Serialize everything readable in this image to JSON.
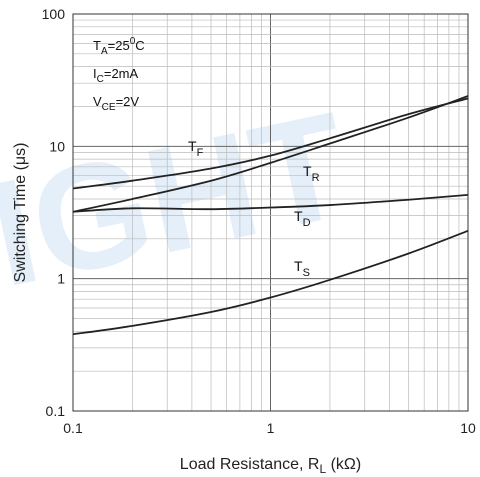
{
  "chart_data": {
    "type": "line",
    "title": "",
    "xlabel": "Load Resistance, R",
    "xlabel_sub": "L",
    "xlabel_unit": " (kΩ)",
    "ylabel": "Switching Time (μs)",
    "x_scale": "log",
    "y_scale": "log",
    "xlim": [
      0.1,
      10
    ],
    "ylim": [
      0.1,
      100
    ],
    "x_ticks": [
      "0.1",
      "1",
      "10"
    ],
    "y_ticks": [
      "100",
      "10",
      "1",
      "0.1"
    ],
    "grid": true,
    "watermark": "IGHT",
    "conditions": [
      {
        "main": "T",
        "sub": "A",
        "rest": "=25",
        "sup": "0",
        "tail": "C"
      },
      {
        "main": "I",
        "sub": "C",
        "rest": "=2mA",
        "sup": "",
        "tail": ""
      },
      {
        "main": "V",
        "sub": "CE",
        "rest": "=2V",
        "sup": "",
        "tail": ""
      }
    ],
    "series": [
      {
        "name": "T",
        "sub": "F",
        "x": [
          0.1,
          0.2,
          0.5,
          1,
          2,
          5,
          10
        ],
        "y": [
          4.8,
          5.5,
          6.8,
          8.5,
          11.5,
          17.5,
          23
        ]
      },
      {
        "name": "T",
        "sub": "R",
        "x": [
          0.1,
          0.2,
          0.5,
          1,
          2,
          5,
          10
        ],
        "y": [
          3.2,
          4.0,
          5.5,
          7.5,
          10.5,
          16.5,
          24
        ]
      },
      {
        "name": "T",
        "sub": "D",
        "x": [
          0.1,
          0.2,
          0.5,
          1,
          2,
          5,
          10
        ],
        "y": [
          3.2,
          3.4,
          3.35,
          3.45,
          3.6,
          3.95,
          4.3
        ]
      },
      {
        "name": "T",
        "sub": "S",
        "x": [
          0.1,
          0.2,
          0.5,
          1,
          2,
          5,
          10
        ],
        "y": [
          0.38,
          0.44,
          0.56,
          0.72,
          0.98,
          1.55,
          2.3
        ]
      }
    ]
  }
}
